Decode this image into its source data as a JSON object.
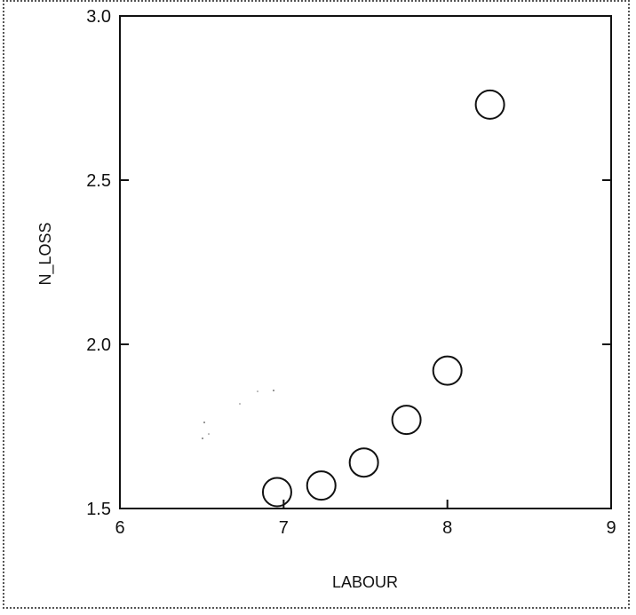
{
  "chart_data": {
    "type": "scatter",
    "xlabel": "LABOUR",
    "ylabel": "N_LOSS",
    "xlim": [
      6,
      9
    ],
    "ylim": [
      1.5,
      3.0
    ],
    "x_ticks": [
      "6",
      "7",
      "8",
      "9"
    ],
    "y_ticks": [
      "1.5",
      "2.0",
      "2.5",
      "3.0"
    ],
    "grid": false,
    "series": [
      {
        "marker": "open-circle",
        "x": [
          6.96,
          7.23,
          7.49,
          7.75,
          8.0,
          8.26
        ],
        "y": [
          1.55,
          1.57,
          1.64,
          1.77,
          1.92,
          2.73
        ]
      }
    ]
  }
}
